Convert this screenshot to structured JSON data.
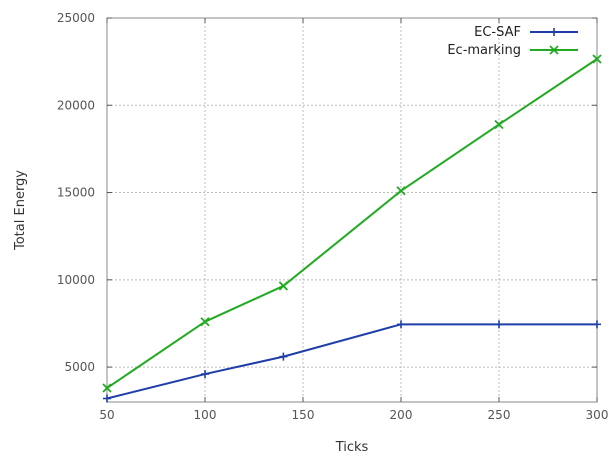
{
  "chart_data": {
    "type": "line",
    "title": "",
    "xlabel": "Ticks",
    "ylabel": "Total Energy",
    "xlim": [
      50,
      300
    ],
    "ylim": [
      3000,
      25000
    ],
    "xticks": [
      50,
      100,
      150,
      200,
      250,
      300
    ],
    "yticks": [
      5000,
      10000,
      15000,
      20000,
      25000
    ],
    "grid": true,
    "legend_position": "top-right",
    "series": [
      {
        "name": "EC-SAF",
        "color": "#1f3fa8",
        "marker": "plus",
        "x": [
          50,
          100,
          140,
          200,
          250,
          300
        ],
        "y": [
          3200,
          4600,
          5600,
          7450,
          7450,
          7450
        ]
      },
      {
        "name": "Ec-marking",
        "color": "#22aa22",
        "marker": "cross",
        "x": [
          50,
          100,
          140,
          200,
          250,
          300
        ],
        "y": [
          3800,
          7600,
          9650,
          15100,
          18900,
          22650
        ]
      }
    ]
  }
}
